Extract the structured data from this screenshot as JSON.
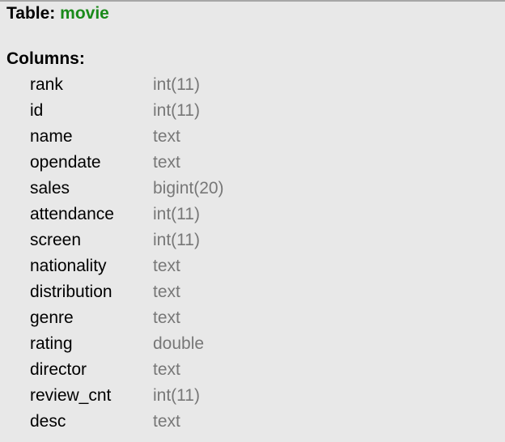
{
  "table": {
    "label": "Table:",
    "name": "movie"
  },
  "columns_label": "Columns:",
  "columns": [
    {
      "name": "rank",
      "type": "int(11)"
    },
    {
      "name": "id",
      "type": "int(11)"
    },
    {
      "name": "name",
      "type": "text"
    },
    {
      "name": "opendate",
      "type": "text"
    },
    {
      "name": "sales",
      "type": "bigint(20)"
    },
    {
      "name": "attendance",
      "type": "int(11)"
    },
    {
      "name": "screen",
      "type": "int(11)"
    },
    {
      "name": "nationality",
      "type": "text"
    },
    {
      "name": "distribution",
      "type": "text"
    },
    {
      "name": "genre",
      "type": "text"
    },
    {
      "name": "rating",
      "type": "double"
    },
    {
      "name": "director",
      "type": "text"
    },
    {
      "name": "review_cnt",
      "type": "int(11)"
    },
    {
      "name": "desc",
      "type": "text"
    }
  ],
  "colors": {
    "table_name": "#1a8a1a",
    "type": "#777777",
    "background": "#e8e8e8"
  }
}
